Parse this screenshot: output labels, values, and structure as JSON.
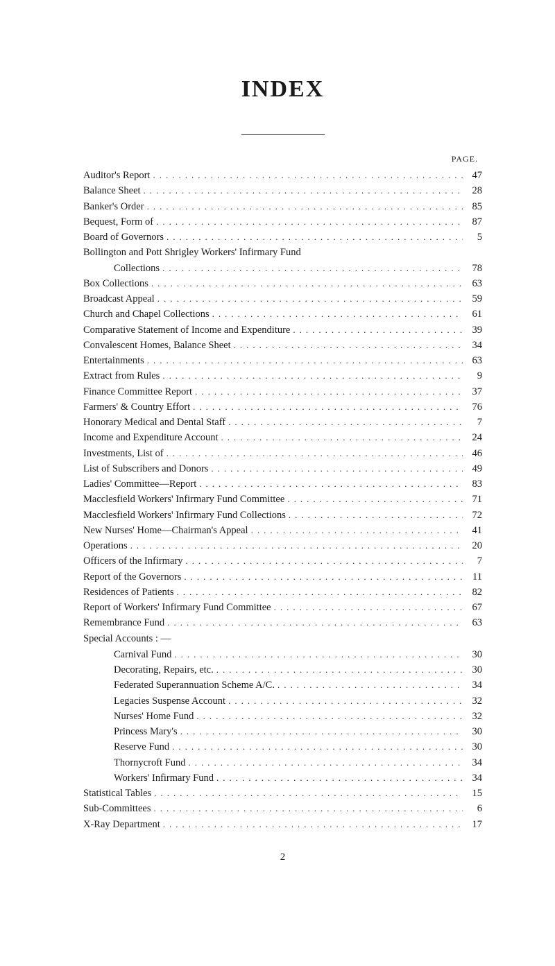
{
  "title": "INDEX",
  "page_header": "PAGE.",
  "footer_page_number": "2",
  "colors": {
    "background": "#ffffff",
    "text": "#1a1a1a",
    "dots": "#2a2a2a"
  },
  "typography": {
    "title_fontsize": 34,
    "body_fontsize": 14.5,
    "header_fontsize": 12,
    "font_family": "Times New Roman / Georgia serif"
  },
  "entries": [
    {
      "label": "Auditor's Report",
      "page": "47",
      "indent": false
    },
    {
      "label": "Balance Sheet",
      "page": "28",
      "indent": false
    },
    {
      "label": "Banker's Order",
      "page": "85",
      "indent": false
    },
    {
      "label": "Bequest, Form of",
      "page": "87",
      "indent": false
    },
    {
      "label": "Board of Governors",
      "page": "5",
      "indent": false
    },
    {
      "label": "Bollington and Pott Shrigley Workers' Infirmary Fund",
      "page": "",
      "indent": false,
      "no_page": true
    },
    {
      "label": "Collections",
      "page": "78",
      "indent": true
    },
    {
      "label": "Box Collections",
      "page": "63",
      "indent": false
    },
    {
      "label": "Broadcast Appeal",
      "page": "59",
      "indent": false
    },
    {
      "label": "Church and Chapel Collections",
      "page": "61",
      "indent": false
    },
    {
      "label": "Comparative Statement of Income and Expenditure",
      "page": "39",
      "indent": false
    },
    {
      "label": "Convalescent Homes, Balance Sheet",
      "page": "34",
      "indent": false
    },
    {
      "label": "Entertainments",
      "page": "63",
      "indent": false
    },
    {
      "label": "Extract from Rules",
      "page": "9",
      "indent": false
    },
    {
      "label": "Finance Committee Report",
      "page": "37",
      "indent": false
    },
    {
      "label": "Farmers' & Country Effort",
      "page": "76",
      "indent": false
    },
    {
      "label": "Honorary Medical and Dental Staff",
      "page": "7",
      "indent": false
    },
    {
      "label": "Income and Expenditure Account",
      "page": "24",
      "indent": false
    },
    {
      "label": "Investments, List of",
      "page": "46",
      "indent": false
    },
    {
      "label": "List of Subscribers and Donors",
      "page": "49",
      "indent": false
    },
    {
      "label": "Ladies' Committee—Report",
      "page": "83",
      "indent": false
    },
    {
      "label": "Macclesfield Workers' Infirmary Fund Committee",
      "page": "71",
      "indent": false
    },
    {
      "label": "Macclesfield Workers' Infirmary Fund Collections",
      "page": "72",
      "indent": false
    },
    {
      "label": "New Nurses' Home—Chairman's Appeal",
      "page": "41",
      "indent": false
    },
    {
      "label": "Operations",
      "page": "20",
      "indent": false
    },
    {
      "label": "Officers of the Infirmary",
      "page": "7",
      "indent": false
    },
    {
      "label": "Report of the Governors",
      "page": "11",
      "indent": false
    },
    {
      "label": "Residences of Patients",
      "page": "82",
      "indent": false
    },
    {
      "label": "Report of Workers' Infirmary Fund Committee",
      "page": "67",
      "indent": false
    },
    {
      "label": "Remembrance Fund",
      "page": "63",
      "indent": false
    },
    {
      "label": "Special Accounts : —",
      "page": "",
      "indent": false,
      "no_page": true,
      "section": true
    },
    {
      "label": "Carnival Fund",
      "page": "30",
      "indent": true
    },
    {
      "label": "Decorating, Repairs, etc.",
      "page": "30",
      "indent": true
    },
    {
      "label": "Federated Superannuation Scheme A/C.",
      "page": "34",
      "indent": true
    },
    {
      "label": "Legacies Suspense Account",
      "page": "32",
      "indent": true
    },
    {
      "label": "Nurses' Home Fund",
      "page": "32",
      "indent": true
    },
    {
      "label": "Princess Mary's",
      "page": "30",
      "indent": true
    },
    {
      "label": "Reserve Fund",
      "page": "30",
      "indent": true
    },
    {
      "label": "Thornycroft Fund",
      "page": "34",
      "indent": true
    },
    {
      "label": "Workers' Infirmary Fund",
      "page": "34",
      "indent": true
    },
    {
      "label": "Statistical Tables",
      "page": "15",
      "indent": false
    },
    {
      "label": "Sub-Committees",
      "page": "6",
      "indent": false
    },
    {
      "label": "X-Ray Department",
      "page": "17",
      "indent": false
    }
  ]
}
